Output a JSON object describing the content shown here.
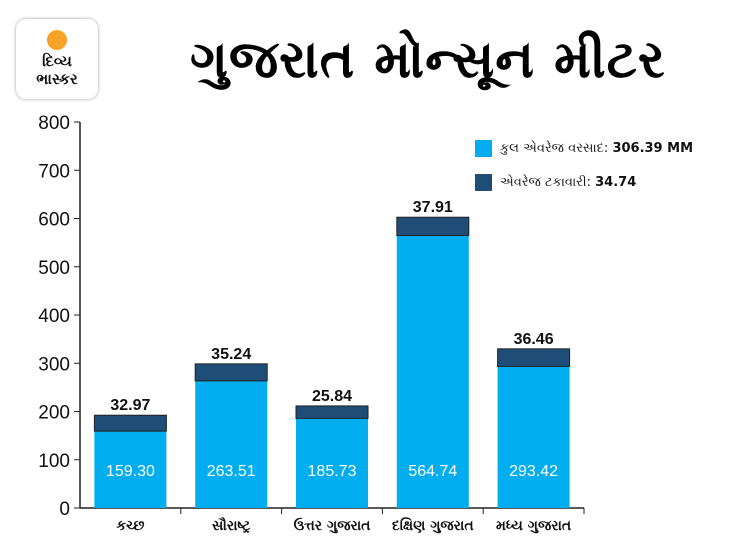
{
  "logo": {
    "line1": "દિવ્ય",
    "line2": "ભાસ્કર"
  },
  "title": "ગુજરાત મોન્સૂન મીટર",
  "legend": [
    {
      "label": "કુલ એવરેજ વરસાદ:",
      "value": "306.39 MM",
      "color": "#00aeef"
    },
    {
      "label": "એવરેજ ટકાવારી:",
      "value": "34.74",
      "color": "#1e4d78"
    }
  ],
  "chart_data": {
    "type": "bar",
    "stacked": true,
    "categories": [
      "કચ્છ",
      "સૌરાષ્ટ્ર",
      "ઉત્તર ગુજરાત",
      "દક્ષિણ ગુજરાત",
      "મધ્ય ગુજરાત"
    ],
    "series": [
      {
        "name": "કુલ એવરેજ વરસાદ",
        "values": [
          159.3,
          263.51,
          185.73,
          564.74,
          293.42
        ],
        "labels": [
          "159.30",
          "263.51",
          "185.73",
          "564.74",
          "293.42"
        ],
        "color": "#00aeef"
      },
      {
        "name": "એવરેજ ટકાવારી",
        "values": [
          32.97,
          35.24,
          25.84,
          37.91,
          36.46
        ],
        "labels": [
          "32.97",
          "35.24",
          "25.84",
          "37.91",
          "36.46"
        ],
        "color": "#1e4d78"
      }
    ],
    "ylim": [
      0,
      800
    ],
    "yticks": [
      "0",
      "100",
      "200",
      "300",
      "400",
      "500",
      "600",
      "700",
      "800"
    ],
    "legend_position": "top-right"
  }
}
